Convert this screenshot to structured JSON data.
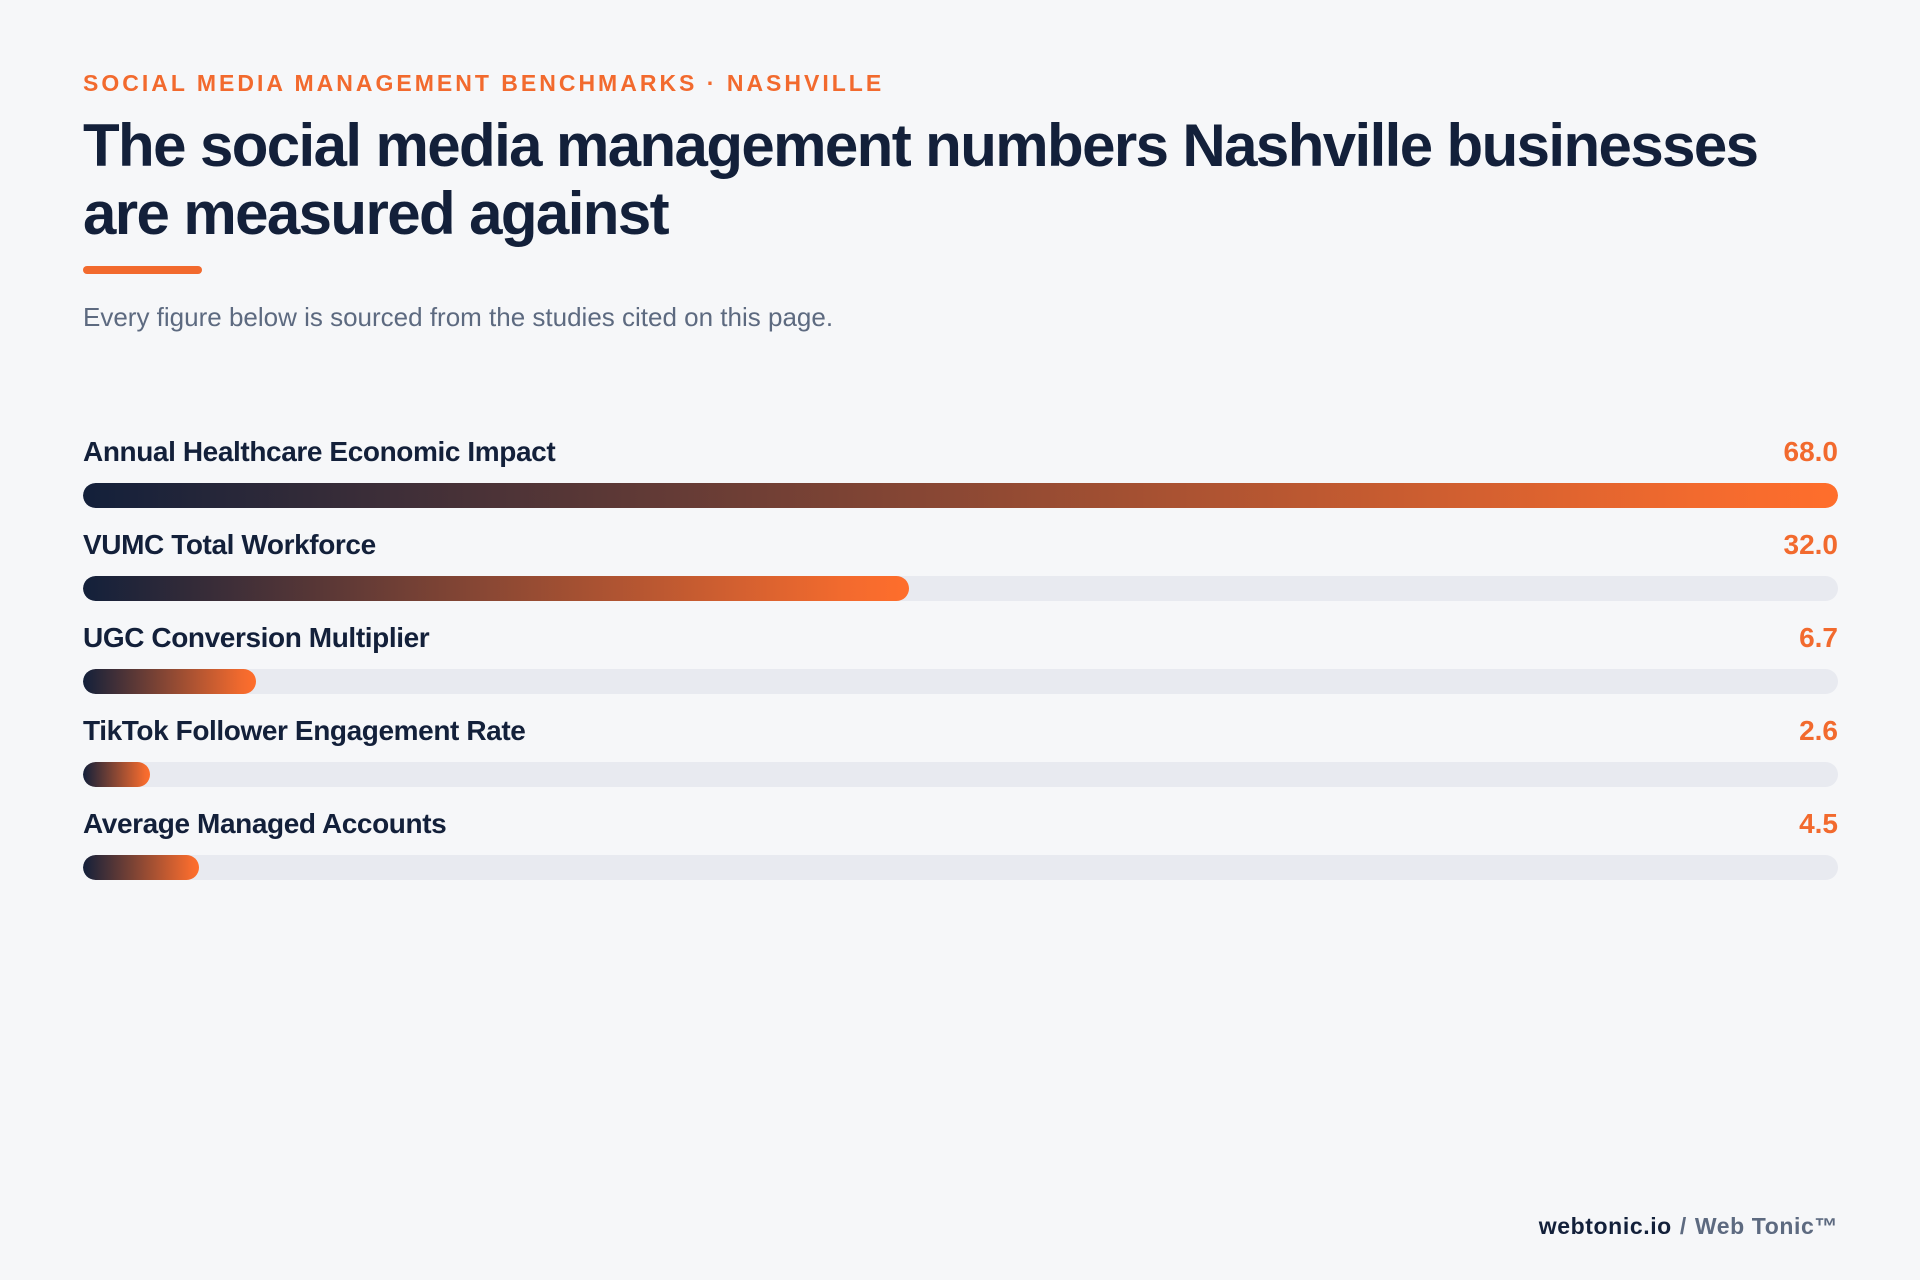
{
  "header": {
    "eyebrow": "SOCIAL MEDIA MANAGEMENT BENCHMARKS · NASHVILLE",
    "title": "The social media management numbers Nashville businesses are measured against",
    "subtitle": "Every figure below is sourced from the studies cited on this page."
  },
  "colors": {
    "accent": "#f26a2e",
    "navy": "#13203a",
    "track": "#e8eaf0",
    "background": "#f6f7f9"
  },
  "chart_data": {
    "type": "bar",
    "orientation": "horizontal",
    "categories": [
      "Annual Healthcare Economic Impact",
      "VUMC Total Workforce",
      "UGC Conversion Multiplier",
      "TikTok Follower Engagement Rate",
      "Average Managed Accounts"
    ],
    "values": [
      68.0,
      32.0,
      6.7,
      2.6,
      4.5
    ],
    "value_labels": [
      "68.0",
      "32.0",
      "6.7",
      "2.6",
      "4.5"
    ],
    "xlim": [
      0,
      68.0
    ]
  },
  "footer": {
    "domain": "webtonic.io",
    "separator": "/",
    "brand": "Web Tonic™"
  }
}
